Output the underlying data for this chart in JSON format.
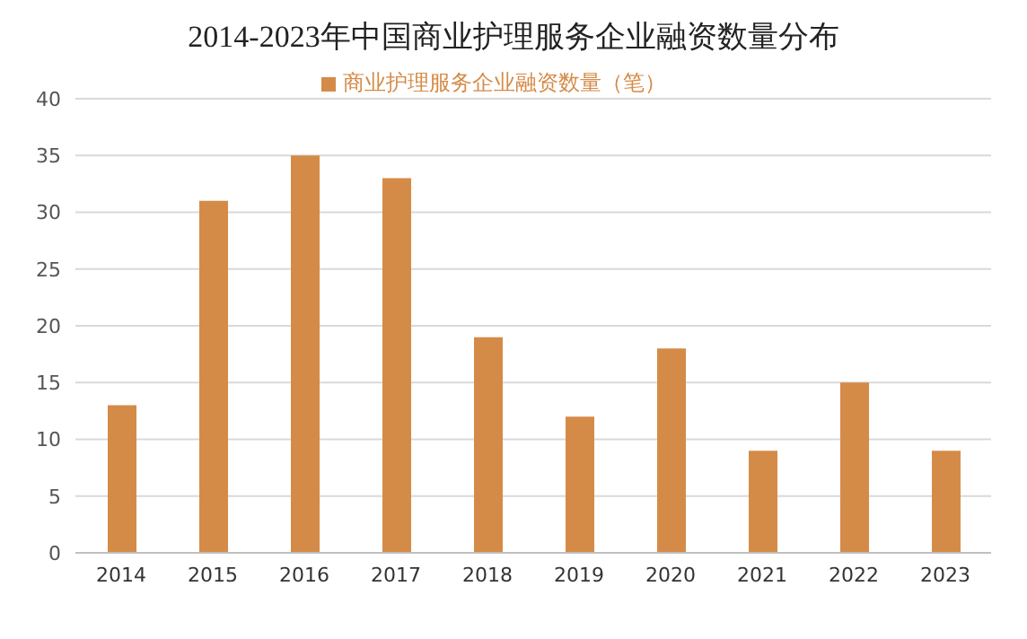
{
  "chart_data": {
    "type": "bar",
    "title": "2014-2023年中国商业护理服务企业融资数量分布",
    "categories": [
      "2014",
      "2015",
      "2016",
      "2017",
      "2018",
      "2019",
      "2020",
      "2021",
      "2022",
      "2023"
    ],
    "series": [
      {
        "name": "商业护理服务企业融资数量（笔）",
        "color": "#d58b48",
        "values": [
          13,
          31,
          35,
          33,
          19,
          12,
          18,
          9,
          15,
          9
        ]
      }
    ],
    "ylim": [
      0,
      40
    ],
    "yticks": [
      0,
      5,
      10,
      15,
      20,
      25,
      30,
      35,
      40
    ],
    "grid": "y",
    "legend": "top"
  }
}
